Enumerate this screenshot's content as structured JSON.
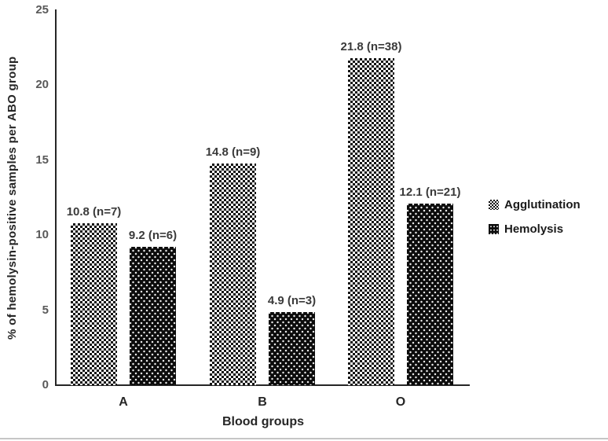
{
  "chart_data": {
    "type": "bar",
    "categories": [
      "A",
      "B",
      "O"
    ],
    "series": [
      {
        "name": "Agglutination",
        "pattern": "checker",
        "values": [
          10.8,
          14.8,
          21.8
        ],
        "data_labels": [
          "10.8 (n=7)",
          "14.8 (n=9)",
          "21.8 (n=38)"
        ]
      },
      {
        "name": "Hemolysis",
        "pattern": "dots",
        "values": [
          9.2,
          4.9,
          12.1
        ],
        "data_labels": [
          "9.2 (n=6)",
          "4.9 (n=3)",
          "12.1 (n=21)"
        ]
      }
    ],
    "title": "",
    "xlabel": "Blood groups",
    "ylabel": "% of hemolysin-positive samples per ABO group",
    "ylim": [
      0,
      25
    ],
    "yticks": [
      "0",
      "5",
      "10",
      "15",
      "20",
      "25"
    ],
    "grid": false,
    "legend_position": "right"
  },
  "colors": {
    "background": "#ffffff",
    "axis_line": "#262626",
    "tick_label": "#595959",
    "data_label": "#3a3a3a",
    "axis_title": "#262626",
    "legend_text": "#1a1a1a",
    "pattern_ink": "#121212",
    "bottom_rule": "#c6c6c6"
  }
}
